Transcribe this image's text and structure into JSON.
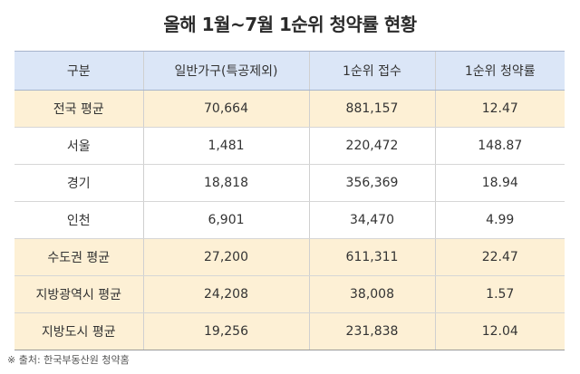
{
  "title": "올해 1월~7월 1순위 청약률 현황",
  "table": {
    "headers": [
      "구분",
      "일반가구(특공제외)",
      "1순위 접수",
      "1순위 청약률"
    ],
    "rows": [
      {
        "cells": [
          "전국 평균",
          "70,664",
          "881,157",
          "12.47"
        ],
        "highlight": true
      },
      {
        "cells": [
          "서울",
          "1,481",
          "220,472",
          "148.87"
        ],
        "highlight": false
      },
      {
        "cells": [
          "경기",
          "18,818",
          "356,369",
          "18.94"
        ],
        "highlight": false
      },
      {
        "cells": [
          "인천",
          "6,901",
          "34,470",
          "4.99"
        ],
        "highlight": false
      },
      {
        "cells": [
          "수도권 평균",
          "27,200",
          "611,311",
          "22.47"
        ],
        "highlight": true
      },
      {
        "cells": [
          "지방광역시 평균",
          "24,208",
          "38,008",
          "1.57"
        ],
        "highlight": true
      },
      {
        "cells": [
          "지방도시 평균",
          "19,256",
          "231,838",
          "12.04"
        ],
        "highlight": true
      }
    ]
  },
  "source": "※ 출처: 한국부동산원 청약홈",
  "colors": {
    "header_bg": "#dbe6f7",
    "highlight_bg": "#fdf0d5"
  }
}
